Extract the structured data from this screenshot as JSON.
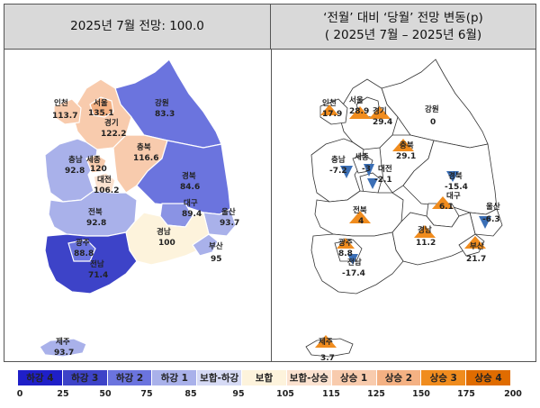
{
  "left_title": "2025년 7월 전망: 100.0",
  "right_title_line1": "‘전월’ 대비 ‘당월’ 전망 변동(p)",
  "right_title_line2": "( 2025년 7월 –  2025년 6월)",
  "regions": {
    "incheon": {
      "name": "인천",
      "index": "113.7",
      "change": "17.9",
      "dir": "up"
    },
    "seoul": {
      "name": "서울",
      "index": "135.1",
      "change": "28.9",
      "dir": "up"
    },
    "gyeonggi": {
      "name": "경기",
      "index": "122.2",
      "change": "29.4",
      "dir": "up"
    },
    "gangwon": {
      "name": "강원",
      "index": "83.3",
      "change": "0",
      "dir": "flat"
    },
    "chungnam": {
      "name": "충남",
      "index": "92.8",
      "change": "-7.2",
      "dir": "down"
    },
    "sejong": {
      "name": "세종",
      "index": "120",
      "change": "-3",
      "dir": "down"
    },
    "daejeon": {
      "name": "대전",
      "index": "106.2",
      "change": "-2.1",
      "dir": "down"
    },
    "chungbuk": {
      "name": "충북",
      "index": "116.6",
      "change": "29.1",
      "dir": "up"
    },
    "gyeongbuk": {
      "name": "경북",
      "index": "84.6",
      "change": "-15.4",
      "dir": "down"
    },
    "daegu": {
      "name": "대구",
      "index": "89.4",
      "change": "6.1",
      "dir": "up"
    },
    "ulsan": {
      "name": "울산",
      "index": "93.7",
      "change": "-6.3",
      "dir": "down"
    },
    "jeonbuk": {
      "name": "전북",
      "index": "92.8",
      "change": "4",
      "dir": "up"
    },
    "gyeongnam": {
      "name": "경남",
      "index": "100",
      "change": "11.2",
      "dir": "up"
    },
    "busan": {
      "name": "부산",
      "index": "95",
      "change": "21.7",
      "dir": "up"
    },
    "gwangju": {
      "name": "광주",
      "index": "88.8",
      "change": "8.8",
      "dir": "up"
    },
    "jeonnam": {
      "name": "전남",
      "index": "71.4",
      "change": "-17.4",
      "dir": "down"
    },
    "jeju": {
      "name": "제주",
      "index": "93.7",
      "change": "3.7",
      "dir": "up"
    }
  },
  "colors": {
    "seoul": "#f4b183",
    "incheon": "#f8cbad",
    "gyeonggi": "#f8cbad",
    "gangwon": "#6b74de",
    "chungnam": "#a9b1ea",
    "sejong": "#f8cbad",
    "daejeon": "#fbe2d0",
    "chungbuk": "#f8cbad",
    "gyeongbuk": "#6b74de",
    "daegu": "#8a93e4",
    "ulsan": "#a9b1ea",
    "jeonbuk": "#a9b1ea",
    "gyeongnam": "#fdf3dc",
    "busan": "#a9b1ea",
    "gwangju": "#6b74de",
    "jeonnam": "#3d43c8",
    "jeju": "#a9b1ea",
    "up": "#f08c1e",
    "down": "#3b6fb6"
  },
  "legend": [
    {
      "label": "하강 4",
      "color": "#1f1fc8"
    },
    {
      "label": "하강 3",
      "color": "#3d43c8"
    },
    {
      "label": "하강 2",
      "color": "#6b74de"
    },
    {
      "label": "하강 1",
      "color": "#a9b1ea"
    },
    {
      "label": "보합-하강",
      "color": "#d6daf5"
    },
    {
      "label": "보합",
      "color": "#fdf3dc"
    },
    {
      "label": "보합-상승",
      "color": "#fbe2d0"
    },
    {
      "label": "상승 1",
      "color": "#f8cbad"
    },
    {
      "label": "상승 2",
      "color": "#f4b183"
    },
    {
      "label": "상승 3",
      "color": "#f08c1e"
    },
    {
      "label": "상승 4",
      "color": "#e06c00"
    }
  ],
  "ticks": [
    "0",
    "25",
    "50",
    "75",
    "85",
    "95",
    "105",
    "115",
    "125",
    "150",
    "175",
    "200"
  ]
}
